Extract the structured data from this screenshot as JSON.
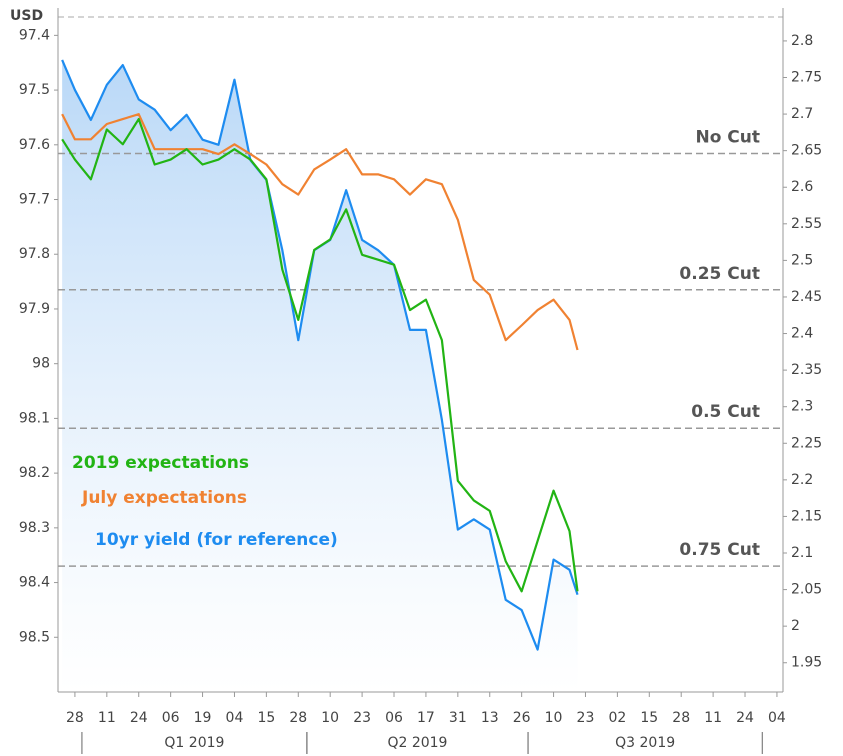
{
  "chart_data": {
    "type": "line",
    "y_label": "USD",
    "inverted_y": true,
    "ylim": [
      97.35,
      98.6
    ],
    "yticks": [
      97.4,
      97.5,
      97.6,
      97.7,
      97.8,
      97.9,
      98,
      98.1,
      98.2,
      98.3,
      98.4,
      98.5
    ],
    "y2lim": [
      1.91,
      2.845
    ],
    "y2ticks": [
      1.95,
      2,
      2.05,
      2.1,
      2.15,
      2.2,
      2.25,
      2.3,
      2.35,
      2.4,
      2.45,
      2.5,
      2.55,
      2.6,
      2.65,
      2.7,
      2.75,
      2.8
    ],
    "xlim": [
      -0.53,
      22.19
    ],
    "xticks": [
      {
        "value": 0,
        "label": "28"
      },
      {
        "value": 1,
        "label": "11"
      },
      {
        "value": 2,
        "label": "24"
      },
      {
        "value": 3,
        "label": "06"
      },
      {
        "value": 4,
        "label": "19"
      },
      {
        "value": 5,
        "label": "04"
      },
      {
        "value": 6,
        "label": "15"
      },
      {
        "value": 7,
        "label": "28"
      },
      {
        "value": 8,
        "label": "10"
      },
      {
        "value": 9,
        "label": "23"
      },
      {
        "value": 10,
        "label": "06"
      },
      {
        "value": 11,
        "label": "17"
      },
      {
        "value": 12,
        "label": "31"
      },
      {
        "value": 13,
        "label": "13"
      },
      {
        "value": 14,
        "label": "26"
      },
      {
        "value": 15,
        "label": "10"
      },
      {
        "value": 16,
        "label": "23"
      },
      {
        "value": 17,
        "label": "02"
      },
      {
        "value": 18,
        "label": "15"
      },
      {
        "value": 19,
        "label": "28"
      },
      {
        "value": 20,
        "label": "11"
      },
      {
        "value": 21,
        "label": "24"
      },
      {
        "value": 22,
        "label": "04"
      }
    ],
    "periods": [
      {
        "label": "Q1 2019",
        "start": 0.22,
        "end": 7.27
      },
      {
        "label": "Q2 2019",
        "start": 7.27,
        "end": 14.2
      },
      {
        "label": "Q3 2019",
        "start": 14.2,
        "end": 21.54
      }
    ],
    "reference_lines": [
      {
        "label": "No Cut",
        "value": 97.616
      },
      {
        "label": "0.25 Cut",
        "value": 97.865
      },
      {
        "label": "0.5 Cut",
        "value": 98.118
      },
      {
        "label": "0.75 Cut",
        "value": 98.37
      }
    ],
    "x": [
      -0.4,
      0,
      0.5,
      1,
      1.5,
      2,
      2.5,
      3,
      3.5,
      4,
      4.5,
      5,
      5.5,
      6,
      6.5,
      7,
      7.5,
      8,
      8.5,
      9,
      9.5,
      10,
      10.5,
      11,
      11.5,
      12,
      12.5,
      13,
      13.5,
      14,
      14.5,
      15,
      15.5,
      15.75
    ],
    "series": [
      {
        "name": "2019 expectations",
        "color": "#22b414",
        "axis": "y",
        "values": [
          97.59,
          97.627,
          97.663,
          97.572,
          97.599,
          97.553,
          97.636,
          97.627,
          97.608,
          97.636,
          97.627,
          97.608,
          97.627,
          97.663,
          97.828,
          97.92,
          97.792,
          97.773,
          97.718,
          97.801,
          97.81,
          97.819,
          97.902,
          97.883,
          97.957,
          98.214,
          98.25,
          98.269,
          98.361,
          98.416,
          98.324,
          98.232,
          98.306,
          98.416
        ]
      },
      {
        "name": "July expectations",
        "color": "#f08232",
        "axis": "y",
        "values": [
          97.544,
          97.59,
          97.59,
          97.562,
          97.553,
          97.544,
          97.608,
          97.608,
          97.608,
          97.608,
          97.617,
          97.599,
          97.617,
          97.636,
          97.672,
          97.691,
          97.645,
          97.627,
          97.608,
          97.654,
          97.654,
          97.663,
          97.691,
          97.663,
          97.672,
          97.737,
          97.847,
          97.874,
          97.957,
          97.93,
          97.902,
          97.883,
          97.92,
          97.975
        ]
      },
      {
        "name": "10yr yield (for reference)",
        "color": "#1e8cf0",
        "axis": "y2",
        "values": [
          2.774,
          2.733,
          2.692,
          2.74,
          2.767,
          2.72,
          2.706,
          2.678,
          2.699,
          2.665,
          2.658,
          2.747,
          2.637,
          2.61,
          2.514,
          2.391,
          2.514,
          2.528,
          2.596,
          2.528,
          2.514,
          2.494,
          2.405,
          2.405,
          2.282,
          2.132,
          2.146,
          2.132,
          2.036,
          2.022,
          1.968,
          2.091,
          2.077,
          2.043
        ]
      }
    ]
  }
}
